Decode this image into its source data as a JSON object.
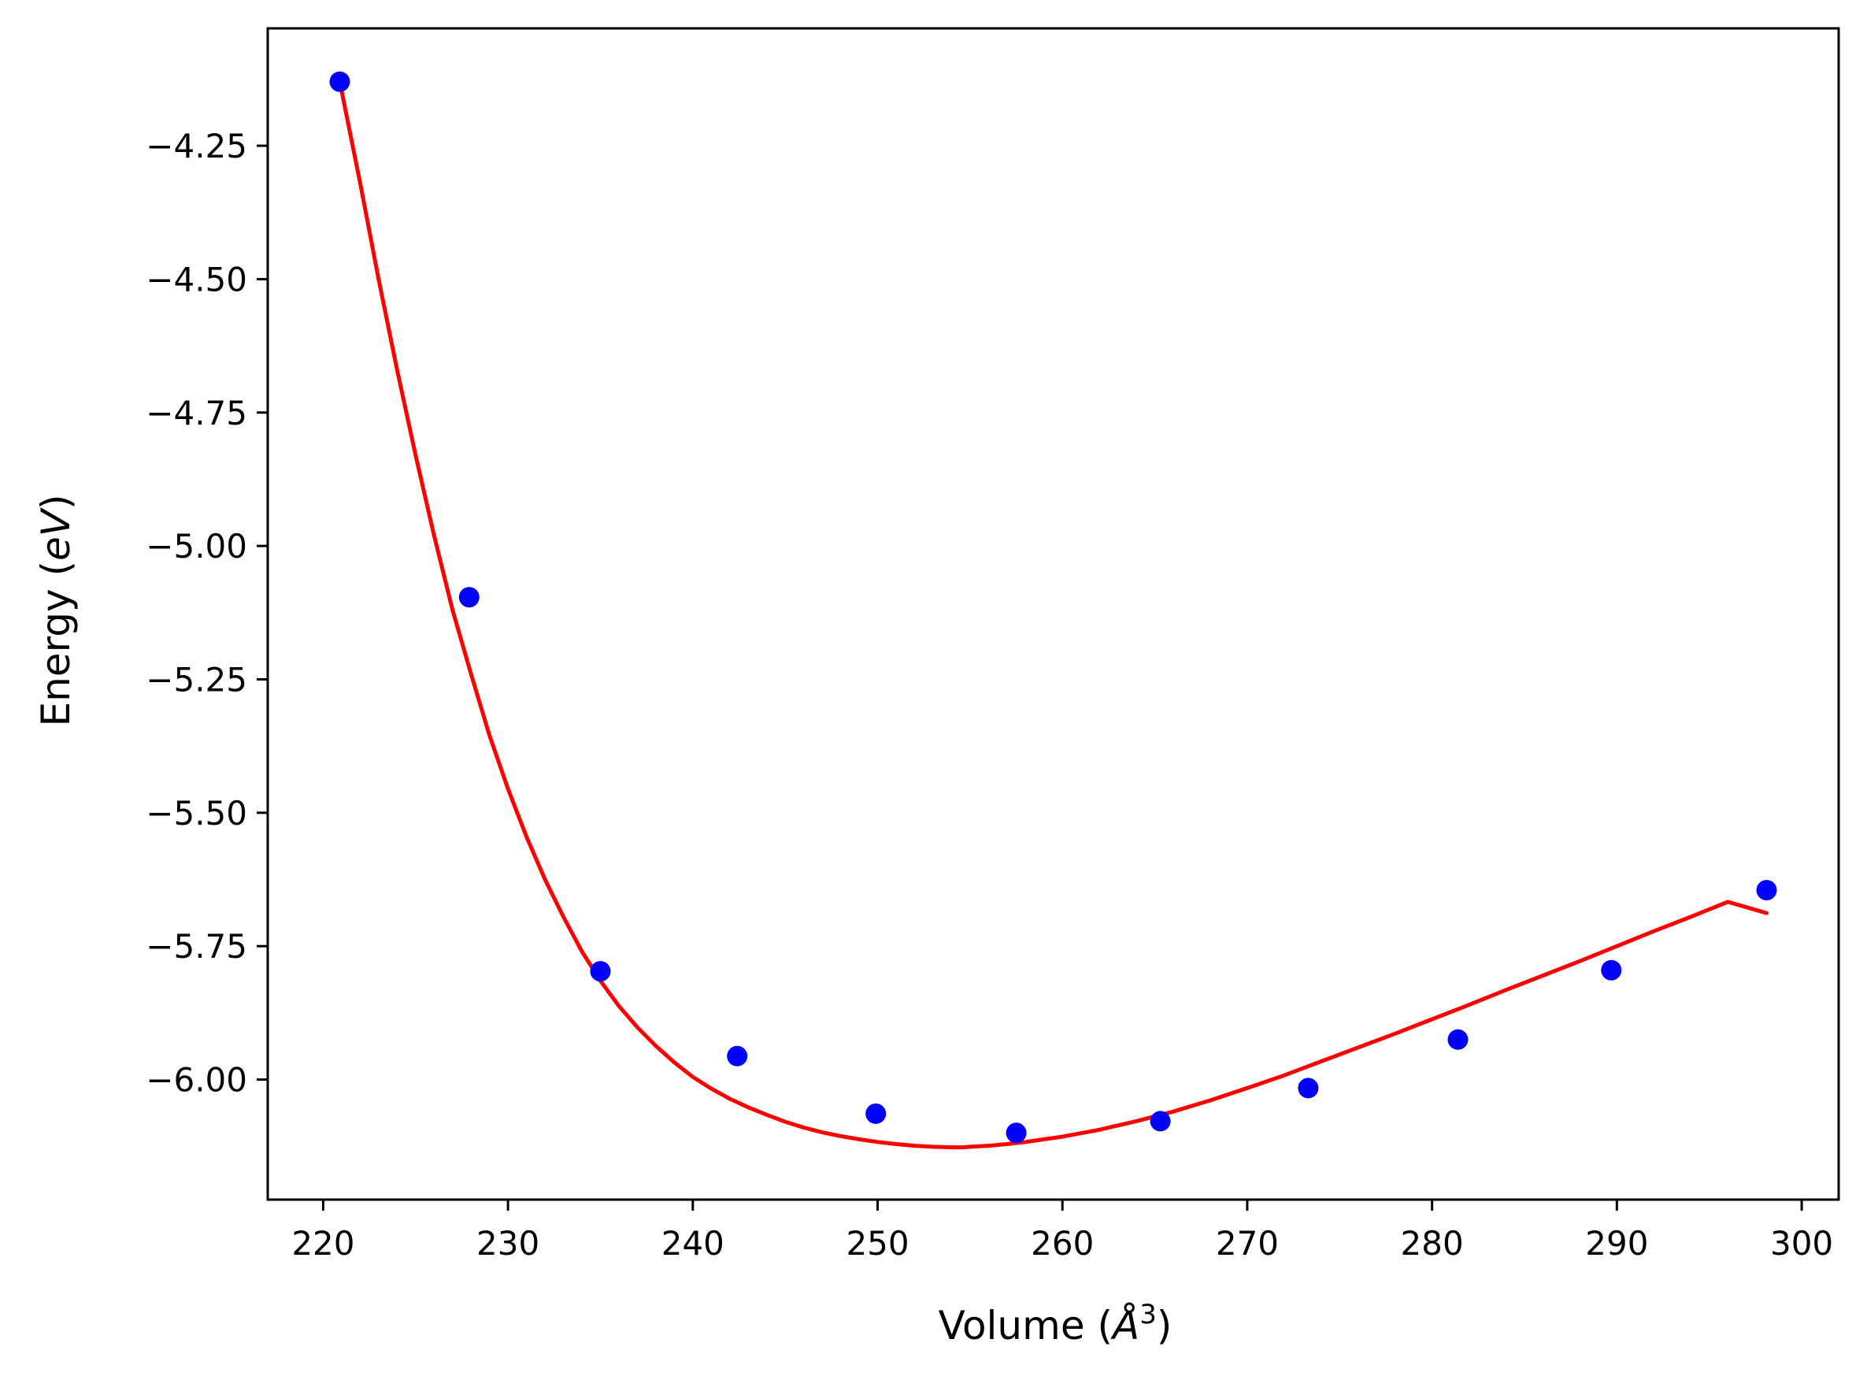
{
  "chart_data": {
    "type": "scatter",
    "title": "",
    "xlabel_main": "Volume (",
    "xlabel_unit": "Å",
    "xlabel_sup": "3",
    "xlabel_close": ")",
    "ylabel_main": "Energy (",
    "ylabel_unit": "eV",
    "ylabel_close": ")",
    "xlim": [
      217,
      302
    ],
    "ylim": [
      -6.225,
      -4.03
    ],
    "xticks": [
      220,
      230,
      240,
      250,
      260,
      270,
      280,
      290,
      300
    ],
    "xtick_labels": [
      "220",
      "230",
      "240",
      "250",
      "260",
      "270",
      "280",
      "290",
      "300"
    ],
    "yticks": [
      -4.25,
      -4.5,
      -4.75,
      -5.0,
      -5.25,
      -5.5,
      -5.75,
      -6.0
    ],
    "ytick_labels": [
      "−4.25",
      "−4.50",
      "−4.75",
      "−5.00",
      "−5.25",
      "−5.50",
      "−5.75",
      "−6.00"
    ],
    "grid": false,
    "legend": "none",
    "series": [
      {
        "kind": "scatter",
        "color": "#0000ff",
        "x": [
          220.9,
          227.9,
          235.0,
          242.4,
          249.9,
          257.5,
          265.3,
          273.3,
          281.4,
          289.7,
          298.1
        ],
        "y": [
          -4.13,
          -5.096,
          -5.797,
          -5.956,
          -6.064,
          -6.1,
          -6.078,
          -6.016,
          -5.925,
          -5.795,
          -5.645
        ]
      },
      {
        "kind": "line",
        "color": "#ff0000",
        "x": [
          220.9,
          222.0,
          223.0,
          224.0,
          225.0,
          226.0,
          227.0,
          228.0,
          229.0,
          230.0,
          231.0,
          232.0,
          233.0,
          234.0,
          235.0,
          236.0,
          237.0,
          238.0,
          239.0,
          240.0,
          241.0,
          242.0,
          243.0,
          244.0,
          245.0,
          246.0,
          247.0,
          248.0,
          249.0,
          250.0,
          251.0,
          252.0,
          253.0,
          254.0,
          254.6,
          255.0,
          256.0,
          257.0,
          258.0,
          259.0,
          260.0,
          262.0,
          264.0,
          266.0,
          268.0,
          270.0,
          272.0,
          274.0,
          276.0,
          278.0,
          280.0,
          282.0,
          284.0,
          286.0,
          288.0,
          290.0,
          292.0,
          294.0,
          296.0,
          298.1
        ],
        "y": [
          -4.13,
          -4.32,
          -4.5,
          -4.67,
          -4.83,
          -4.98,
          -5.12,
          -5.24,
          -5.355,
          -5.455,
          -5.545,
          -5.625,
          -5.695,
          -5.76,
          -5.815,
          -5.862,
          -5.902,
          -5.937,
          -5.968,
          -5.995,
          -6.017,
          -6.036,
          -6.052,
          -6.066,
          -6.079,
          -6.09,
          -6.099,
          -6.106,
          -6.112,
          -6.117,
          -6.121,
          -6.124,
          -6.126,
          -6.127,
          -6.127,
          -6.126,
          -6.124,
          -6.121,
          -6.117,
          -6.112,
          -6.107,
          -6.094,
          -6.078,
          -6.06,
          -6.039,
          -6.016,
          -5.992,
          -5.966,
          -5.94,
          -5.914,
          -5.887,
          -5.86,
          -5.832,
          -5.805,
          -5.778,
          -5.75,
          -5.722,
          -5.695,
          -5.667,
          -5.688
        ]
      }
    ]
  }
}
